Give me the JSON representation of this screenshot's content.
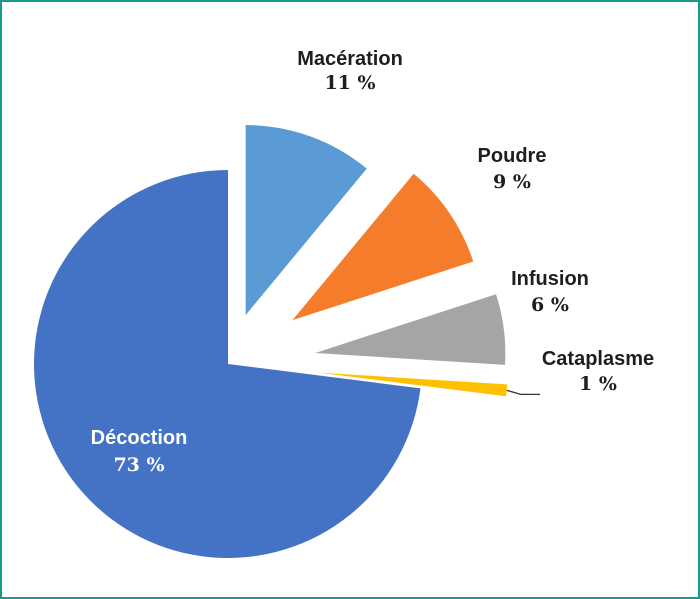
{
  "chart_data": {
    "type": "pie",
    "title": "",
    "slices": [
      {
        "name": "Macération",
        "value": 11,
        "label": "11 %",
        "color": "#5b9bd5"
      },
      {
        "name": "Poudre",
        "value": 9,
        "label": "9 %",
        "color": "#f47c2a"
      },
      {
        "name": "Infusion",
        "value": 6,
        "label": "6 %",
        "color": "#a5a5a5"
      },
      {
        "name": "Cataplasme",
        "value": 1,
        "label": "1 %",
        "color": "#ffc000"
      },
      {
        "name": "Décoction",
        "value": 73,
        "label": "73 %",
        "color": "#4472c4"
      }
    ],
    "legend": "none",
    "frame_color": "#1a9a8a"
  }
}
